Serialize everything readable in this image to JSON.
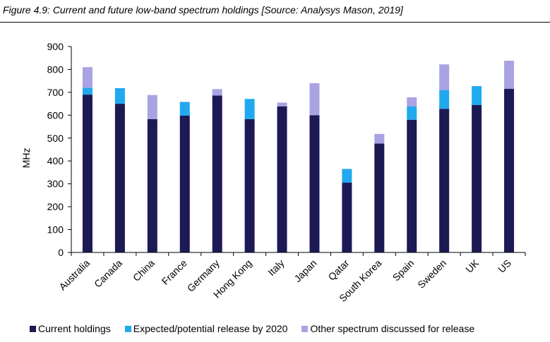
{
  "figure": {
    "caption": "Figure 4.9: Current and future low-band spectrum holdings [Source: Analysys Mason, 2019]"
  },
  "colors": {
    "current": "#1c1a54",
    "expected": "#21a9ef",
    "other": "#a9a3e3"
  },
  "chart_data": {
    "type": "bar",
    "stacked": true,
    "categories": [
      "Australia",
      "Canada",
      "China",
      "France",
      "Germany",
      "Hong Kong",
      "Italy",
      "Japan",
      "Qatar",
      "South Korea",
      "Spain",
      "Sweden",
      "UK",
      "US"
    ],
    "series": [
      {
        "name": "Current holdings",
        "values": [
          690,
          650,
          583,
          598,
          686,
          583,
          638,
          600,
          305,
          476,
          580,
          628,
          645,
          715
        ]
      },
      {
        "name": "Expected/potential release by 2020",
        "values": [
          30,
          68,
          0,
          60,
          0,
          88,
          0,
          0,
          60,
          0,
          58,
          82,
          82,
          0
        ]
      },
      {
        "name": "Other spectrum discussed for release",
        "values": [
          90,
          0,
          105,
          0,
          28,
          0,
          17,
          140,
          0,
          42,
          40,
          112,
          0,
          123
        ]
      }
    ],
    "xlabel": "",
    "ylabel": "MHz",
    "ylim": [
      0,
      900
    ],
    "yticks": [
      0,
      100,
      200,
      300,
      400,
      500,
      600,
      700,
      800,
      900
    ],
    "grid": false,
    "legend_position": "bottom"
  }
}
